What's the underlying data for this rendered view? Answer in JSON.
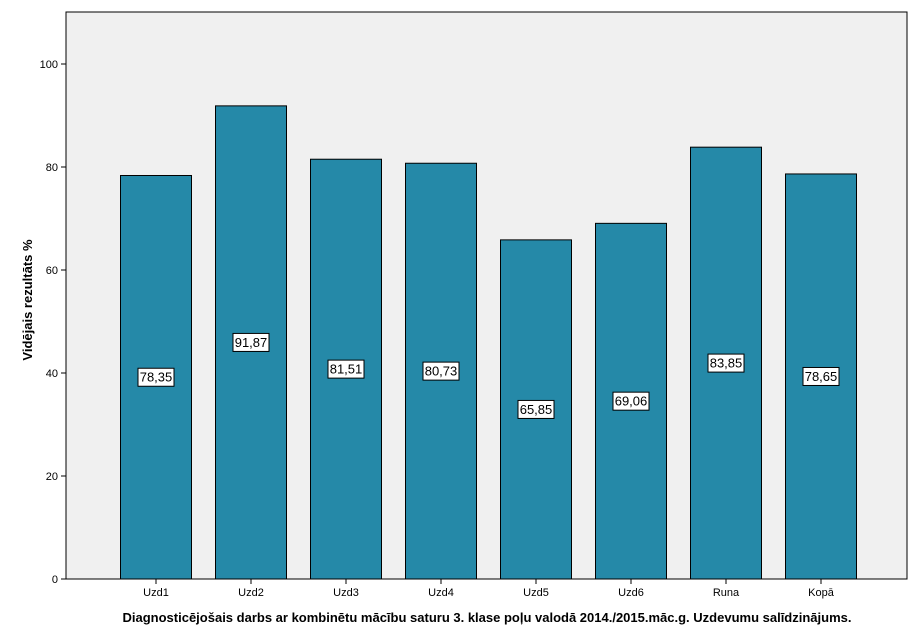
{
  "chart_data": {
    "type": "bar",
    "title": "",
    "xlabel": "Diagnosticējošais darbs ar kombinētu mācību saturu 3. klase poļu valodā 2014./2015.māc.g. Uzdevumu salīdzinājums.",
    "ylabel": "Vidējais rezultāts %",
    "categories": [
      "Uzd1",
      "Uzd2",
      "Uzd3",
      "Uzd4",
      "Uzd5",
      "Uzd6",
      "Runa",
      "Kopā"
    ],
    "values": [
      78.35,
      91.87,
      81.51,
      80.73,
      65.85,
      69.06,
      83.85,
      78.65
    ],
    "data_labels": [
      "78,35",
      "91,87",
      "81,51",
      "80,73",
      "65,85",
      "69,06",
      "83,85",
      "78,65"
    ],
    "yticks": [
      0,
      20,
      40,
      60,
      80,
      100
    ],
    "ylim": [
      0,
      110
    ],
    "grid": false,
    "legend": "none",
    "colors": {
      "bar_fill": "#2589a8",
      "bar_stroke": "#000000",
      "plot_background": "#f0f0f0",
      "label_background": "#ffffff"
    }
  }
}
